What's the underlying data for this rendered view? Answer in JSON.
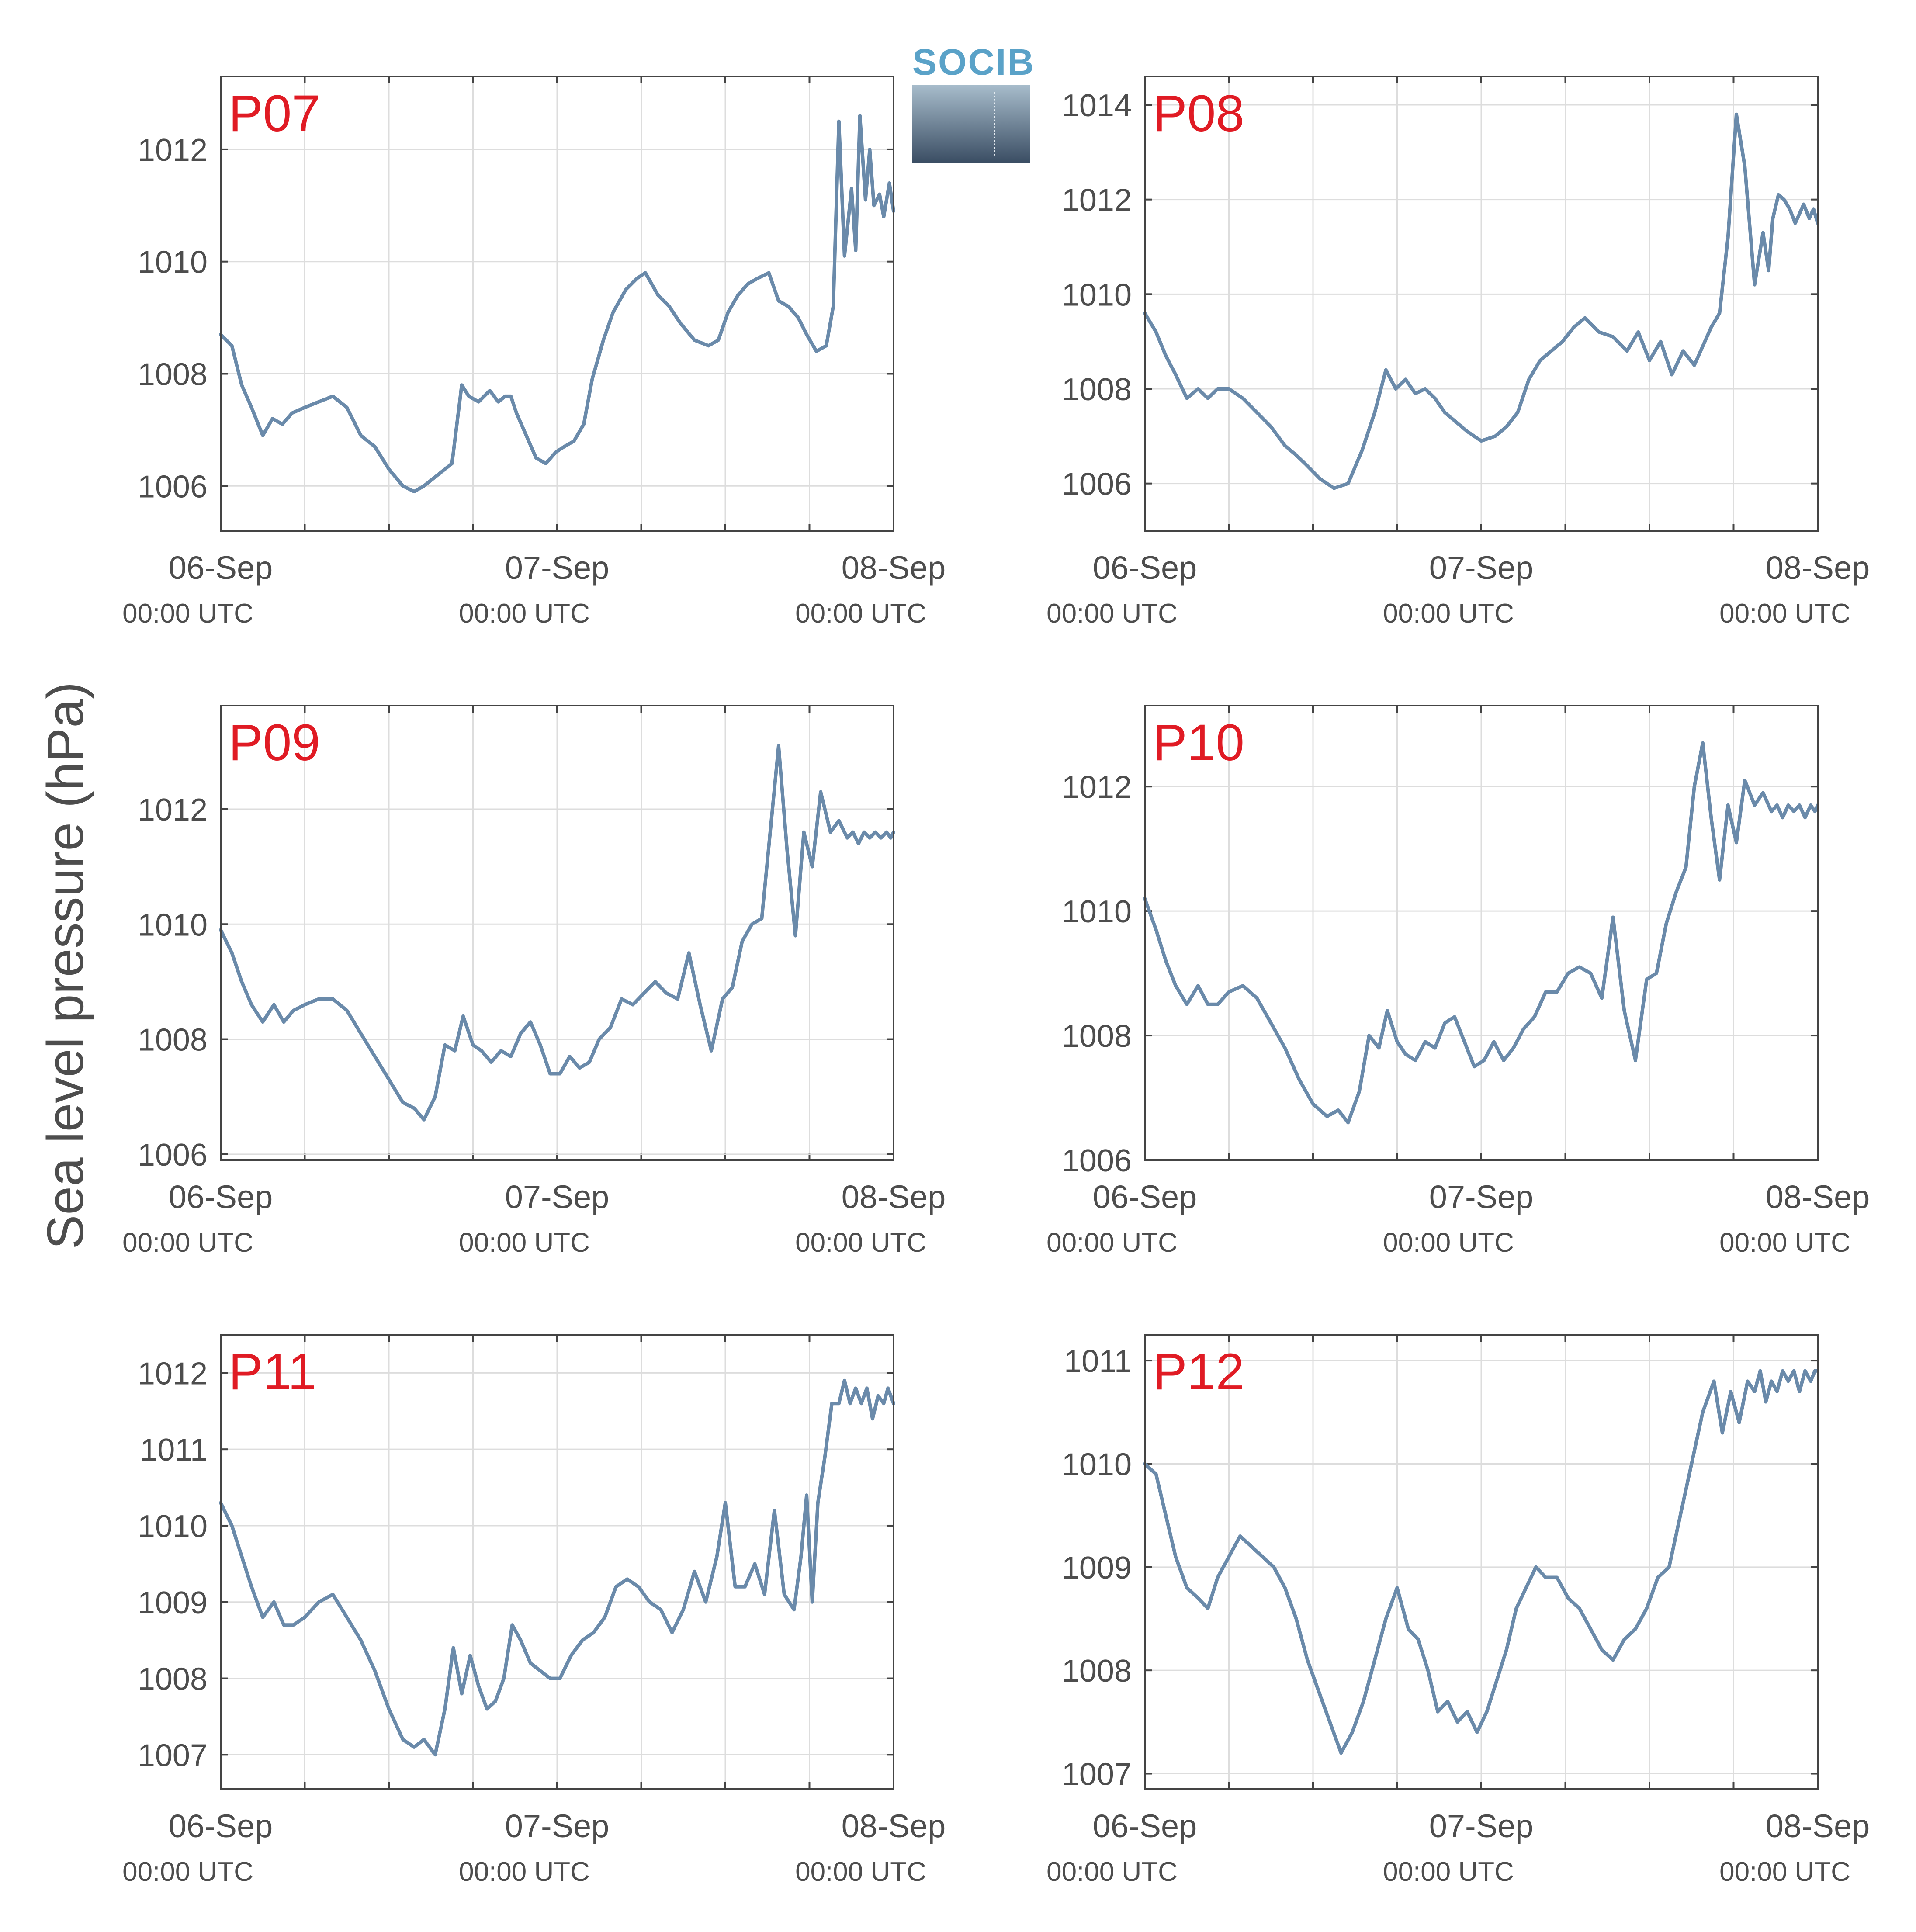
{
  "ylabel": "Sea level pressure (hPa)",
  "logo_text": "SOCIB",
  "colors": {
    "series": "#6a8aaa",
    "panel_label": "#e01b24",
    "grid": "#dddddd",
    "axis": "#444444",
    "text": "#4d4d4d"
  },
  "chart_data": [
    {
      "type": "line",
      "label": "P07",
      "x_ticks": [
        {
          "date": "06-Sep",
          "time": "00:00 UTC"
        },
        {
          "date": "07-Sep",
          "time": "00:00 UTC"
        },
        {
          "date": "08-Sep",
          "time": "00:00 UTC"
        }
      ],
      "x_unit": "hours since 06-Sep 00:00 UTC",
      "xlim": [
        0,
        48
      ],
      "yticks": [
        1006,
        1008,
        1010,
        1012
      ],
      "ylim": [
        1005.2,
        1013.3
      ],
      "x": [
        0,
        0.8,
        1.5,
        2.2,
        3.0,
        3.7,
        4.4,
        5.1,
        6.0,
        7.0,
        8.0,
        9.0,
        10.0,
        11.0,
        11.5,
        12.0,
        13.0,
        13.8,
        14.5,
        15.5,
        16.5,
        17.2,
        17.7,
        18.4,
        19.2,
        19.8,
        20.3,
        20.7,
        21.1,
        21.8,
        22.5,
        23.2,
        23.9,
        24.5,
        25.2,
        25.9,
        26.5,
        27.3,
        28.0,
        28.9,
        29.7,
        30.3,
        31.2,
        32.0,
        32.8,
        33.8,
        34.8,
        35.5,
        36.2,
        36.9,
        37.6,
        38.3,
        39.1,
        39.8,
        40.5,
        41.2,
        41.8,
        42.5,
        43.2,
        43.7,
        44.1,
        44.5,
        45.0,
        45.3,
        45.6,
        46.0,
        46.3,
        46.6,
        47.0,
        47.3,
        47.7,
        48.0
      ],
      "y": [
        1008.7,
        1008.5,
        1007.8,
        1007.4,
        1006.9,
        1007.2,
        1007.1,
        1007.3,
        1007.4,
        1007.5,
        1007.6,
        1007.4,
        1006.9,
        1006.7,
        1006.5,
        1006.3,
        1006.0,
        1005.9,
        1006.0,
        1006.2,
        1006.4,
        1007.8,
        1007.6,
        1007.5,
        1007.7,
        1007.5,
        1007.6,
        1007.6,
        1007.3,
        1006.9,
        1006.5,
        1006.4,
        1006.6,
        1006.7,
        1006.8,
        1007.1,
        1007.9,
        1008.6,
        1009.1,
        1009.5,
        1009.7,
        1009.8,
        1009.4,
        1009.2,
        1008.9,
        1008.6,
        1008.5,
        1008.6,
        1009.1,
        1009.4,
        1009.6,
        1009.7,
        1009.8,
        1009.3,
        1009.2,
        1009.0,
        1008.7,
        1008.4,
        1008.5,
        1009.2,
        1012.5,
        1010.1,
        1011.3,
        1010.2,
        1012.6,
        1011.1,
        1012.0,
        1011.0,
        1011.2,
        1010.8,
        1011.4,
        1010.9
      ]
    },
    {
      "type": "line",
      "label": "P08",
      "x_ticks": [
        {
          "date": "06-Sep",
          "time": "00:00 UTC"
        },
        {
          "date": "07-Sep",
          "time": "00:00 UTC"
        },
        {
          "date": "08-Sep",
          "time": "00:00 UTC"
        }
      ],
      "x_unit": "hours since 06-Sep 00:00 UTC",
      "xlim": [
        0,
        48
      ],
      "yticks": [
        1006,
        1008,
        1010,
        1012,
        1014
      ],
      "ylim": [
        1005.0,
        1014.6
      ],
      "x": [
        0,
        0.8,
        1.5,
        2.2,
        3.0,
        3.8,
        4.5,
        5.2,
        6.0,
        7.0,
        8.0,
        9.0,
        10.0,
        10.8,
        11.5,
        12.5,
        13.5,
        14.5,
        15.5,
        16.4,
        17.2,
        17.9,
        18.6,
        19.3,
        20.0,
        20.7,
        21.4,
        22.2,
        23.0,
        24.0,
        25.0,
        25.8,
        26.6,
        27.4,
        28.2,
        29.0,
        29.8,
        30.6,
        31.4,
        32.4,
        33.4,
        34.4,
        35.2,
        36.0,
        36.8,
        37.6,
        38.4,
        39.2,
        39.8,
        40.4,
        41.0,
        41.6,
        42.2,
        42.8,
        43.5,
        44.1,
        44.5,
        44.8,
        45.2,
        45.6,
        46.0,
        46.4,
        46.7,
        47.0,
        47.4,
        47.7,
        48.0
      ],
      "y": [
        1009.6,
        1009.2,
        1008.7,
        1008.3,
        1007.8,
        1008.0,
        1007.8,
        1008.0,
        1008.0,
        1007.8,
        1007.5,
        1007.2,
        1006.8,
        1006.6,
        1006.4,
        1006.1,
        1005.9,
        1006.0,
        1006.7,
        1007.5,
        1008.4,
        1008.0,
        1008.2,
        1007.9,
        1008.0,
        1007.8,
        1007.5,
        1007.3,
        1007.1,
        1006.9,
        1007.0,
        1007.2,
        1007.5,
        1008.2,
        1008.6,
        1008.8,
        1009.0,
        1009.3,
        1009.5,
        1009.2,
        1009.1,
        1008.8,
        1009.2,
        1008.6,
        1009.0,
        1008.3,
        1008.8,
        1008.5,
        1008.9,
        1009.3,
        1009.6,
        1011.2,
        1013.8,
        1012.7,
        1010.2,
        1011.3,
        1010.5,
        1011.6,
        1012.1,
        1012.0,
        1011.8,
        1011.5,
        1011.7,
        1011.9,
        1011.6,
        1011.8,
        1011.5
      ]
    },
    {
      "type": "line",
      "label": "P09",
      "x_ticks": [
        {
          "date": "06-Sep",
          "time": "00:00 UTC"
        },
        {
          "date": "07-Sep",
          "time": "00:00 UTC"
        },
        {
          "date": "08-Sep",
          "time": "00:00 UTC"
        }
      ],
      "x_unit": "hours since 06-Sep 00:00 UTC",
      "xlim": [
        0,
        48
      ],
      "yticks": [
        1006,
        1008,
        1010,
        1012
      ],
      "ylim": [
        1005.9,
        1013.8
      ],
      "x": [
        0,
        0.8,
        1.5,
        2.2,
        3.0,
        3.8,
        4.5,
        5.2,
        6.0,
        7.0,
        8.0,
        9.0,
        10.0,
        11.0,
        12.0,
        13.0,
        13.8,
        14.5,
        15.3,
        16.0,
        16.7,
        17.3,
        18.0,
        18.6,
        19.3,
        20.0,
        20.7,
        21.4,
        22.1,
        22.8,
        23.5,
        24.2,
        24.9,
        25.6,
        26.3,
        27.0,
        27.8,
        28.6,
        29.4,
        30.2,
        31.0,
        31.8,
        32.6,
        33.4,
        34.2,
        35.0,
        35.8,
        36.5,
        37.2,
        37.9,
        38.6,
        39.2,
        39.8,
        40.4,
        41.0,
        41.6,
        42.2,
        42.8,
        43.5,
        44.1,
        44.7,
        45.1,
        45.5,
        45.9,
        46.3,
        46.7,
        47.1,
        47.5,
        47.8,
        48.0
      ],
      "y": [
        1009.9,
        1009.5,
        1009.0,
        1008.6,
        1008.3,
        1008.6,
        1008.3,
        1008.5,
        1008.6,
        1008.7,
        1008.7,
        1008.5,
        1008.1,
        1007.7,
        1007.3,
        1006.9,
        1006.8,
        1006.6,
        1007.0,
        1007.9,
        1007.8,
        1008.4,
        1007.9,
        1007.8,
        1007.6,
        1007.8,
        1007.7,
        1008.1,
        1008.3,
        1007.9,
        1007.4,
        1007.4,
        1007.7,
        1007.5,
        1007.6,
        1008.0,
        1008.2,
        1008.7,
        1008.6,
        1008.8,
        1009.0,
        1008.8,
        1008.7,
        1009.5,
        1008.6,
        1007.8,
        1008.7,
        1008.9,
        1009.7,
        1010.0,
        1010.1,
        1011.6,
        1013.1,
        1011.3,
        1009.8,
        1011.6,
        1011.0,
        1012.3,
        1011.6,
        1011.8,
        1011.5,
        1011.6,
        1011.4,
        1011.6,
        1011.5,
        1011.6,
        1011.5,
        1011.6,
        1011.5,
        1011.6
      ]
    },
    {
      "type": "line",
      "label": "P10",
      "x_ticks": [
        {
          "date": "06-Sep",
          "time": "00:00 UTC"
        },
        {
          "date": "07-Sep",
          "time": "00:00 UTC"
        },
        {
          "date": "08-Sep",
          "time": "00:00 UTC"
        }
      ],
      "x_unit": "hours since 06-Sep 00:00 UTC",
      "xlim": [
        0,
        48
      ],
      "yticks": [
        1006,
        1008,
        1010,
        1012
      ],
      "ylim": [
        1006.0,
        1013.3
      ],
      "x": [
        0,
        0.8,
        1.5,
        2.2,
        3.0,
        3.8,
        4.5,
        5.2,
        6.0,
        7.0,
        8.0,
        9.0,
        10.0,
        11.0,
        12.0,
        13.0,
        13.8,
        14.5,
        15.3,
        16.0,
        16.7,
        17.3,
        18.0,
        18.6,
        19.3,
        20.0,
        20.7,
        21.4,
        22.1,
        22.8,
        23.5,
        24.2,
        24.9,
        25.6,
        26.3,
        27.0,
        27.8,
        28.6,
        29.4,
        30.2,
        31.0,
        31.8,
        32.6,
        33.4,
        34.2,
        35.0,
        35.8,
        36.5,
        37.2,
        37.9,
        38.6,
        39.2,
        39.8,
        40.4,
        41.0,
        41.6,
        42.2,
        42.8,
        43.5,
        44.1,
        44.7,
        45.1,
        45.5,
        45.9,
        46.3,
        46.7,
        47.1,
        47.5,
        47.8,
        48.0
      ],
      "y": [
        1010.2,
        1009.7,
        1009.2,
        1008.8,
        1008.5,
        1008.8,
        1008.5,
        1008.5,
        1008.7,
        1008.8,
        1008.6,
        1008.2,
        1007.8,
        1007.3,
        1006.9,
        1006.7,
        1006.8,
        1006.6,
        1007.1,
        1008.0,
        1007.8,
        1008.4,
        1007.9,
        1007.7,
        1007.6,
        1007.9,
        1007.8,
        1008.2,
        1008.3,
        1007.9,
        1007.5,
        1007.6,
        1007.9,
        1007.6,
        1007.8,
        1008.1,
        1008.3,
        1008.7,
        1008.7,
        1009.0,
        1009.1,
        1009.0,
        1008.6,
        1009.9,
        1008.4,
        1007.6,
        1008.9,
        1009.0,
        1009.8,
        1010.3,
        1010.7,
        1012.0,
        1012.7,
        1011.5,
        1010.5,
        1011.7,
        1011.1,
        1012.1,
        1011.7,
        1011.9,
        1011.6,
        1011.7,
        1011.5,
        1011.7,
        1011.6,
        1011.7,
        1011.5,
        1011.7,
        1011.6,
        1011.7
      ]
    },
    {
      "type": "line",
      "label": "P11",
      "x_ticks": [
        {
          "date": "06-Sep",
          "time": "00:00 UTC"
        },
        {
          "date": "07-Sep",
          "time": "00:00 UTC"
        },
        {
          "date": "08-Sep",
          "time": "00:00 UTC"
        }
      ],
      "x_unit": "hours since 06-Sep 00:00 UTC",
      "xlim": [
        0,
        48
      ],
      "yticks": [
        1007,
        1008,
        1009,
        1010,
        1011,
        1012
      ],
      "ylim": [
        1006.55,
        1012.5
      ],
      "x": [
        0,
        0.8,
        1.5,
        2.2,
        3.0,
        3.8,
        4.5,
        5.2,
        6.0,
        7.0,
        8.0,
        9.0,
        10.0,
        11.0,
        12.0,
        13.0,
        13.8,
        14.5,
        15.3,
        16.0,
        16.6,
        17.2,
        17.8,
        18.4,
        19.0,
        19.6,
        20.2,
        20.8,
        21.4,
        22.1,
        22.8,
        23.5,
        24.2,
        25.0,
        25.8,
        26.6,
        27.4,
        28.2,
        29.0,
        29.8,
        30.6,
        31.4,
        32.2,
        33.0,
        33.8,
        34.6,
        35.4,
        36.0,
        36.7,
        37.4,
        38.1,
        38.8,
        39.5,
        40.2,
        40.9,
        41.4,
        41.8,
        42.2,
        42.6,
        43.1,
        43.6,
        44.1,
        44.5,
        44.9,
        45.3,
        45.7,
        46.1,
        46.5,
        46.9,
        47.3,
        47.6,
        48.0
      ],
      "y": [
        1010.3,
        1010.0,
        1009.6,
        1009.2,
        1008.8,
        1009.0,
        1008.7,
        1008.7,
        1008.8,
        1009.0,
        1009.1,
        1008.8,
        1008.5,
        1008.1,
        1007.6,
        1007.2,
        1007.1,
        1007.2,
        1007.0,
        1007.6,
        1008.4,
        1007.8,
        1008.3,
        1007.9,
        1007.6,
        1007.7,
        1008.0,
        1008.7,
        1008.5,
        1008.2,
        1008.1,
        1008.0,
        1008.0,
        1008.3,
        1008.5,
        1008.6,
        1008.8,
        1009.2,
        1009.3,
        1009.2,
        1009.0,
        1008.9,
        1008.6,
        1008.9,
        1009.4,
        1009.0,
        1009.6,
        1010.3,
        1009.2,
        1009.2,
        1009.5,
        1009.1,
        1010.2,
        1009.1,
        1008.9,
        1009.6,
        1010.4,
        1009.0,
        1010.3,
        1010.9,
        1011.6,
        1011.6,
        1011.9,
        1011.6,
        1011.8,
        1011.6,
        1011.8,
        1011.4,
        1011.7,
        1011.6,
        1011.8,
        1011.6
      ]
    },
    {
      "type": "line",
      "label": "P12",
      "x_ticks": [
        {
          "date": "06-Sep",
          "time": "00:00 UTC"
        },
        {
          "date": "07-Sep",
          "time": "00:00 UTC"
        },
        {
          "date": "08-Sep",
          "time": "00:00 UTC"
        }
      ],
      "x_unit": "hours since 06-Sep 00:00 UTC",
      "xlim": [
        0,
        48
      ],
      "yticks": [
        1007,
        1008,
        1009,
        1010,
        1011
      ],
      "ylim": [
        1006.85,
        1011.25
      ],
      "x": [
        0,
        0.8,
        1.5,
        2.2,
        3.0,
        3.8,
        4.5,
        5.2,
        6.0,
        6.8,
        7.6,
        8.4,
        9.2,
        10.0,
        10.8,
        11.6,
        12.4,
        13.2,
        14.0,
        14.8,
        15.6,
        16.4,
        17.2,
        18.0,
        18.8,
        19.5,
        20.2,
        20.9,
        21.6,
        22.3,
        23.0,
        23.7,
        24.4,
        25.1,
        25.8,
        26.5,
        27.2,
        27.9,
        28.6,
        29.4,
        30.2,
        31.0,
        31.8,
        32.6,
        33.4,
        34.2,
        35.0,
        35.8,
        36.6,
        37.4,
        38.2,
        39.0,
        39.8,
        40.6,
        41.2,
        41.8,
        42.4,
        43.0,
        43.5,
        43.9,
        44.3,
        44.7,
        45.1,
        45.5,
        45.9,
        46.3,
        46.7,
        47.1,
        47.5,
        47.8,
        48.0
      ],
      "y": [
        1010.0,
        1009.9,
        1009.5,
        1009.1,
        1008.8,
        1008.7,
        1008.6,
        1008.9,
        1009.1,
        1009.3,
        1009.2,
        1009.1,
        1009.0,
        1008.8,
        1008.5,
        1008.1,
        1007.8,
        1007.5,
        1007.2,
        1007.4,
        1007.7,
        1008.1,
        1008.5,
        1008.8,
        1008.4,
        1008.3,
        1008.0,
        1007.6,
        1007.7,
        1007.5,
        1007.6,
        1007.4,
        1007.6,
        1007.9,
        1008.2,
        1008.6,
        1008.8,
        1009.0,
        1008.9,
        1008.9,
        1008.7,
        1008.6,
        1008.4,
        1008.2,
        1008.1,
        1008.3,
        1008.4,
        1008.6,
        1008.9,
        1009.0,
        1009.5,
        1010.0,
        1010.5,
        1010.8,
        1010.3,
        1010.7,
        1010.4,
        1010.8,
        1010.7,
        1010.9,
        1010.6,
        1010.8,
        1010.7,
        1010.9,
        1010.8,
        1010.9,
        1010.7,
        1010.9,
        1010.8,
        1010.9,
        1010.9
      ]
    }
  ]
}
